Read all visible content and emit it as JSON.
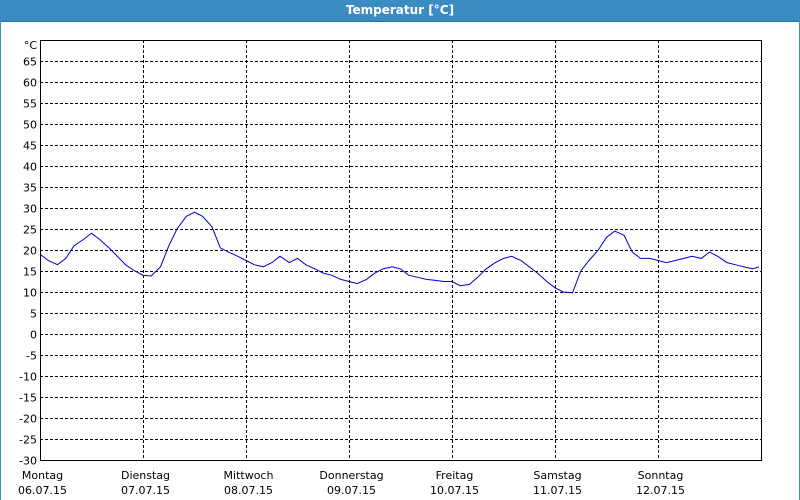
{
  "window": {
    "title": "Temperatur [°C]"
  },
  "colors": {
    "titlebar": "#3c8cc4",
    "line": "#0000c8",
    "grid": "#000000"
  },
  "chart_data": {
    "type": "line",
    "title": "Temperatur [°C]",
    "xlabel": "",
    "ylabel": "°C",
    "ylim": [
      -30,
      70
    ],
    "xlim": [
      0,
      7
    ],
    "yticks": [
      65,
      60,
      55,
      50,
      45,
      40,
      35,
      30,
      25,
      20,
      15,
      10,
      5,
      0,
      -5,
      -10,
      -15,
      -20,
      -25,
      -30
    ],
    "grid": true,
    "grid_style": "dashed",
    "x_ticks": [
      {
        "day": "Montag",
        "date": "06.07.15"
      },
      {
        "day": "Dienstag",
        "date": "07.07.15"
      },
      {
        "day": "Mittwoch",
        "date": "08.07.15"
      },
      {
        "day": "Donnerstag",
        "date": "09.07.15"
      },
      {
        "day": "Freitag",
        "date": "10.07.15"
      },
      {
        "day": "Samstag",
        "date": "11.07.15"
      },
      {
        "day": "Sonntag",
        "date": "12.07.15"
      }
    ],
    "series": [
      {
        "x": [
          0.0,
          0.08,
          0.17,
          0.25,
          0.33,
          0.42,
          0.5,
          0.58,
          0.67,
          0.75,
          0.83,
          0.92,
          1.0,
          1.08,
          1.17,
          1.25,
          1.33,
          1.42,
          1.5,
          1.58,
          1.67,
          1.75,
          1.83,
          1.92,
          2.0,
          2.08,
          2.17,
          2.25,
          2.33,
          2.42,
          2.5,
          2.58,
          2.67,
          2.75,
          2.83,
          2.92,
          3.0,
          3.08,
          3.17,
          3.25,
          3.33,
          3.42,
          3.5,
          3.58,
          3.67,
          3.75,
          3.83,
          3.92,
          4.0,
          4.08,
          4.17,
          4.25,
          4.33,
          4.42,
          4.5,
          4.58,
          4.67,
          4.75,
          4.83,
          4.92,
          5.0,
          5.08,
          5.17,
          5.25,
          5.33,
          5.42,
          5.5,
          5.58,
          5.67,
          5.75,
          5.83,
          5.92,
          6.0,
          6.08,
          6.17,
          6.25,
          6.33,
          6.42,
          6.5,
          6.58,
          6.67,
          6.75,
          6.83,
          6.92,
          6.98
        ],
        "y": [
          19,
          17.5,
          16.5,
          18,
          21,
          22.5,
          24,
          22.5,
          20.5,
          18.5,
          16.5,
          15,
          14,
          13.8,
          16,
          21,
          25,
          28,
          29,
          28,
          25.5,
          20.5,
          19.5,
          18.5,
          17.5,
          16.5,
          16,
          17,
          18.5,
          17,
          18,
          16.5,
          15.5,
          14.5,
          14,
          13,
          12.5,
          12,
          13,
          14.5,
          15.5,
          16,
          15.5,
          14,
          13.5,
          13,
          12.8,
          12.5,
          12.5,
          11.5,
          11.8,
          13.5,
          15.5,
          17,
          18,
          18.5,
          17.5,
          16,
          14.5,
          12.5,
          11,
          10,
          9.8,
          15,
          17.5,
          20,
          23,
          24.5,
          23.5,
          19.5,
          18,
          18,
          17.5,
          17,
          17.5,
          18,
          18.5,
          18,
          19.5,
          18.5,
          17,
          16.5,
          16,
          15.5,
          16
        ]
      }
    ]
  }
}
